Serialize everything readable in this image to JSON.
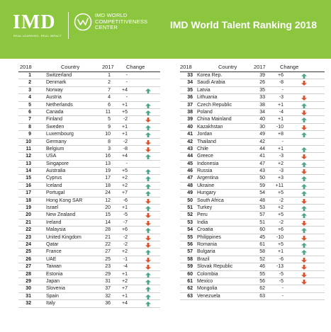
{
  "header": {
    "logo": "IMD",
    "tagline": "REAL LEARNING. REAL IMPACT",
    "wcc_line1": "IMD WORLD",
    "wcc_line2": "COMPETITIVENESS",
    "wcc_line3": "CENTER",
    "title": "IMD World Talent Ranking 2018"
  },
  "colors": {
    "header_bg": "#8cc63f",
    "up_arrow": "#4aa38a",
    "down_arrow": "#d9502b"
  },
  "columns": {
    "rank": "2018",
    "country": "Country",
    "prev": "2017",
    "change": "Change"
  },
  "left": [
    {
      "rank": "1",
      "country": "Switzerland",
      "prev": "1",
      "change": "-",
      "dir": "none"
    },
    {
      "rank": "2",
      "country": "Denmark",
      "prev": "2",
      "change": "-",
      "dir": "none"
    },
    {
      "rank": "3",
      "country": "Norway",
      "prev": "7",
      "change": "+4",
      "dir": "up"
    },
    {
      "rank": "4",
      "country": "Austria",
      "prev": "4",
      "change": "-",
      "dir": "none"
    },
    {
      "rank": "5",
      "country": "Netherlands",
      "prev": "6",
      "change": "+1",
      "dir": "up"
    },
    {
      "rank": "6",
      "country": "Canada",
      "prev": "11",
      "change": "+5",
      "dir": "up"
    },
    {
      "rank": "7",
      "country": "Finland",
      "prev": "5",
      "change": "-2",
      "dir": "down"
    },
    {
      "rank": "8",
      "country": "Sweden",
      "prev": "9",
      "change": "+1",
      "dir": "up"
    },
    {
      "rank": "9",
      "country": "Luxembourg",
      "prev": "10",
      "change": "+1",
      "dir": "up"
    },
    {
      "rank": "10",
      "country": "Germany",
      "prev": "8",
      "change": "-2",
      "dir": "down"
    },
    {
      "rank": "11",
      "country": "Belgium",
      "prev": "3",
      "change": "-8",
      "dir": "down"
    },
    {
      "rank": "12",
      "country": "USA",
      "prev": "16",
      "change": "+4",
      "dir": "up"
    },
    {
      "rank": "13",
      "country": "Singapore",
      "prev": "13",
      "change": "-",
      "dir": "none"
    },
    {
      "rank": "14",
      "country": "Australia",
      "prev": "19",
      "change": "+5",
      "dir": "up"
    },
    {
      "rank": "15",
      "country": "Cyprus",
      "prev": "17",
      "change": "+2",
      "dir": "up"
    },
    {
      "rank": "16",
      "country": "Iceland",
      "prev": "18",
      "change": "+2",
      "dir": "up"
    },
    {
      "rank": "17",
      "country": "Portugal",
      "prev": "24",
      "change": "+7",
      "dir": "up"
    },
    {
      "rank": "18",
      "country": "Hong Kong SAR",
      "prev": "12",
      "change": "-6",
      "dir": "down"
    },
    {
      "rank": "19",
      "country": "Israel",
      "prev": "20",
      "change": "+1",
      "dir": "up"
    },
    {
      "rank": "20",
      "country": "New Zealand",
      "prev": "15",
      "change": "-5",
      "dir": "down"
    },
    {
      "rank": "21",
      "country": "Ireland",
      "prev": "14",
      "change": "-7",
      "dir": "down"
    },
    {
      "rank": "22",
      "country": "Malaysia",
      "prev": "28",
      "change": "+6",
      "dir": "up"
    },
    {
      "rank": "23",
      "country": "United Kingdom",
      "prev": "21",
      "change": "-2",
      "dir": "down"
    },
    {
      "rank": "24",
      "country": "Qatar",
      "prev": "22",
      "change": "-2",
      "dir": "down"
    },
    {
      "rank": "25",
      "country": "France",
      "prev": "27",
      "change": "+2",
      "dir": "up"
    },
    {
      "rank": "26",
      "country": "UAE",
      "prev": "25",
      "change": "-1",
      "dir": "down"
    },
    {
      "rank": "27",
      "country": "Taiwan",
      "prev": "23",
      "change": "-4",
      "dir": "down"
    },
    {
      "rank": "28",
      "country": "Estonia",
      "prev": "29",
      "change": "+1",
      "dir": "up"
    },
    {
      "rank": "29",
      "country": "Japan",
      "prev": "31",
      "change": "+2",
      "dir": "up"
    },
    {
      "rank": "30",
      "country": "Slovenia",
      "prev": "37",
      "change": "+7",
      "dir": "up"
    },
    {
      "rank": "31",
      "country": "Spain",
      "prev": "32",
      "change": "+1",
      "dir": "up"
    },
    {
      "rank": "32",
      "country": "Italy",
      "prev": "36",
      "change": "+4",
      "dir": "up"
    }
  ],
  "right": [
    {
      "rank": "33",
      "country": "Korea Rep.",
      "prev": "39",
      "change": "+6",
      "dir": "up"
    },
    {
      "rank": "34",
      "country": "Saudi Arabia",
      "prev": "26",
      "change": "-8",
      "dir": "down"
    },
    {
      "rank": "35",
      "country": "Latvia",
      "prev": "35",
      "change": "-",
      "dir": "none"
    },
    {
      "rank": "36",
      "country": "Lithuania",
      "prev": "33",
      "change": "-3",
      "dir": "down"
    },
    {
      "rank": "37",
      "country": "Czech Republic",
      "prev": "38",
      "change": "+1",
      "dir": "up"
    },
    {
      "rank": "38",
      "country": "Poland",
      "prev": "34",
      "change": "-4",
      "dir": "down"
    },
    {
      "rank": "39",
      "country": "China Mainland",
      "prev": "40",
      "change": "+1",
      "dir": "up"
    },
    {
      "rank": "40",
      "country": "Kazakhstan",
      "prev": "30",
      "change": "-10",
      "dir": "down"
    },
    {
      "rank": "41",
      "country": "Jordan",
      "prev": "49",
      "change": "+8",
      "dir": "up"
    },
    {
      "rank": "42",
      "country": "Thailand",
      "prev": "42",
      "change": "-",
      "dir": "none"
    },
    {
      "rank": "43",
      "country": "Chile",
      "prev": "44",
      "change": "+1",
      "dir": "up"
    },
    {
      "rank": "44",
      "country": "Greece",
      "prev": "41",
      "change": "-3",
      "dir": "down"
    },
    {
      "rank": "45",
      "country": "Indonesia",
      "prev": "47",
      "change": "+2",
      "dir": "up"
    },
    {
      "rank": "46",
      "country": "Russia",
      "prev": "43",
      "change": "-3",
      "dir": "down"
    },
    {
      "rank": "47",
      "country": "Argentina",
      "prev": "50",
      "change": "+3",
      "dir": "up"
    },
    {
      "rank": "48",
      "country": "Ukraine",
      "prev": "59",
      "change": "+11",
      "dir": "up"
    },
    {
      "rank": "49",
      "country": "Hungary",
      "prev": "54",
      "change": "+5",
      "dir": "up"
    },
    {
      "rank": "50",
      "country": "South Africa",
      "prev": "48",
      "change": "-2",
      "dir": "down"
    },
    {
      "rank": "51",
      "country": "Turkey",
      "prev": "53",
      "change": "+2",
      "dir": "up"
    },
    {
      "rank": "52",
      "country": "Peru",
      "prev": "57",
      "change": "+5",
      "dir": "up"
    },
    {
      "rank": "53",
      "country": "India",
      "prev": "51",
      "change": "-2",
      "dir": "down"
    },
    {
      "rank": "54",
      "country": "Croatia",
      "prev": "60",
      "change": "+6",
      "dir": "up"
    },
    {
      "rank": "55",
      "country": "Philippines",
      "prev": "45",
      "change": "-10",
      "dir": "down"
    },
    {
      "rank": "56",
      "country": "Romania",
      "prev": "61",
      "change": "+5",
      "dir": "up"
    },
    {
      "rank": "57",
      "country": "Bulgaria",
      "prev": "58",
      "change": "+1",
      "dir": "up"
    },
    {
      "rank": "58",
      "country": "Brazil",
      "prev": "52",
      "change": "-6",
      "dir": "down"
    },
    {
      "rank": "59",
      "country": "Slovak Republic",
      "prev": "46",
      "change": "-13",
      "dir": "down"
    },
    {
      "rank": "60",
      "country": "Colombia",
      "prev": "55",
      "change": "-5",
      "dir": "down"
    },
    {
      "rank": "61",
      "country": "Mexico",
      "prev": "56",
      "change": "-5",
      "dir": "down"
    },
    {
      "rank": "62",
      "country": "Mongolia",
      "prev": "62",
      "change": "-",
      "dir": "none"
    },
    {
      "rank": "63",
      "country": "Venezuela",
      "prev": "63",
      "change": "-",
      "dir": "none"
    }
  ]
}
